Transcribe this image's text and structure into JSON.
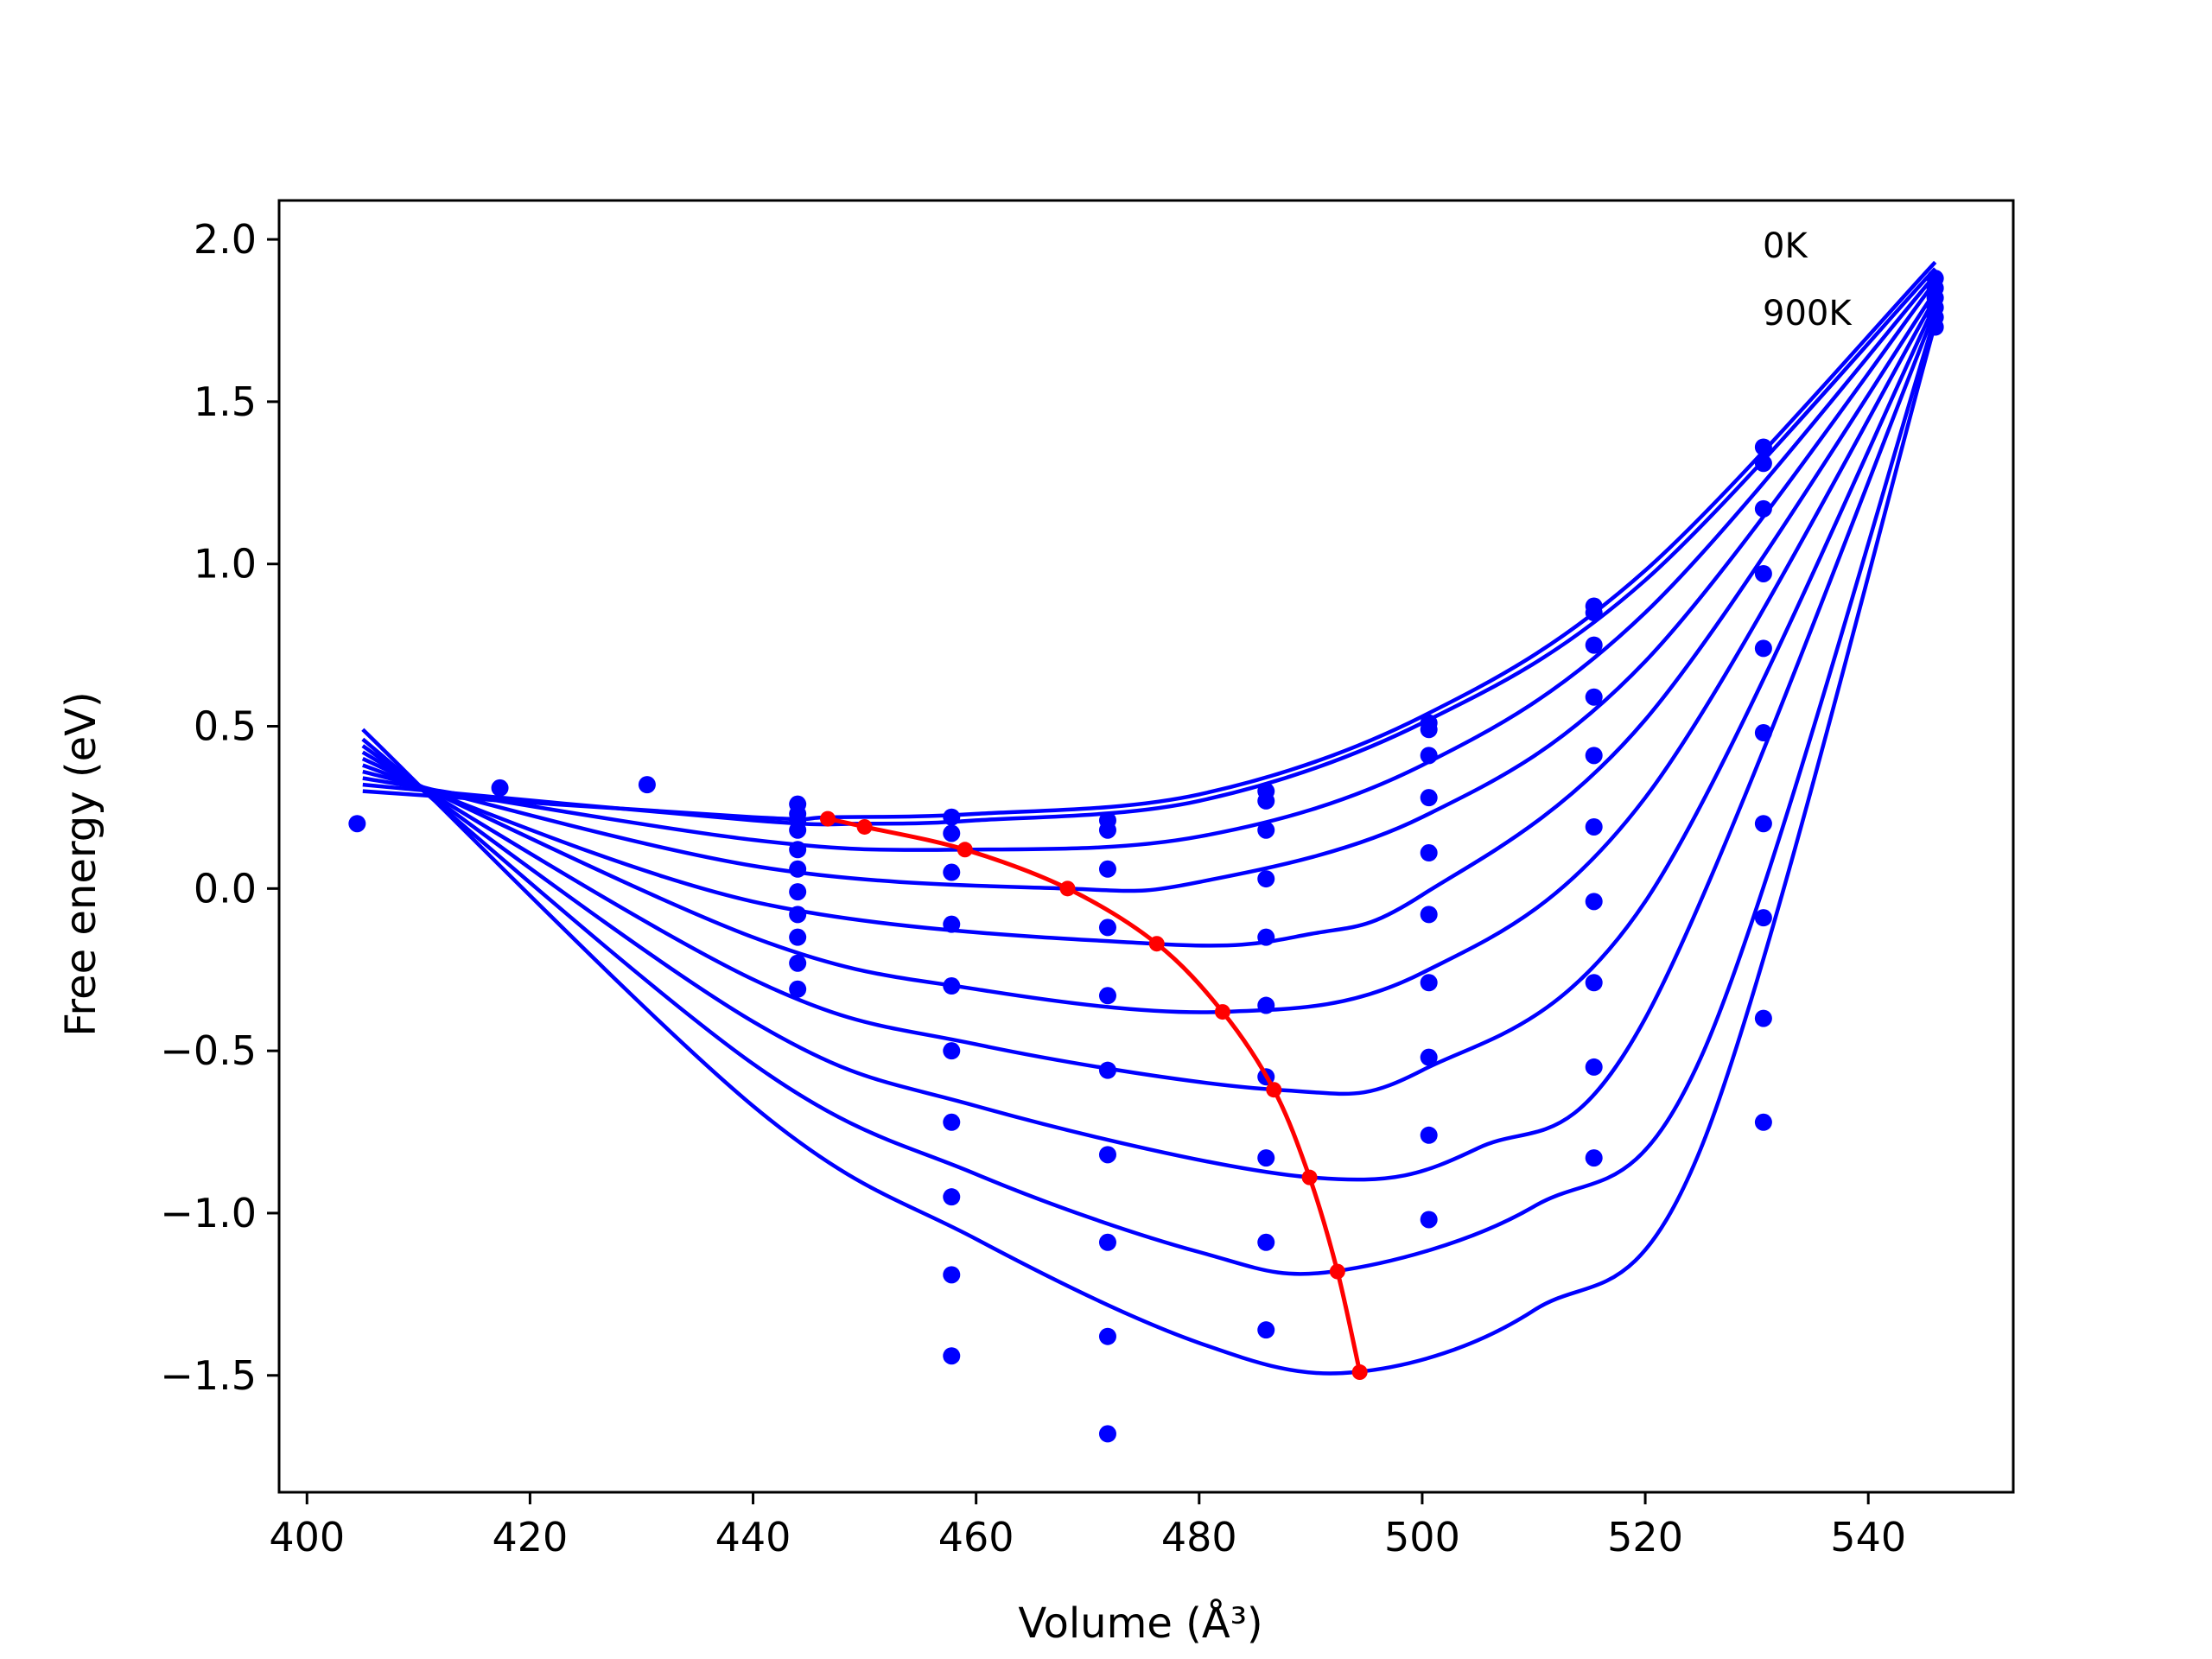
{
  "chart_data": {
    "type": "line",
    "xlabel": "Volume (Å³)",
    "ylabel": "Free energy (eV)",
    "xlim": [
      397.5,
      553
    ],
    "ylim": [
      -1.86,
      2.12
    ],
    "xticks": [
      400,
      420,
      440,
      460,
      480,
      500,
      520,
      540
    ],
    "yticks": [
      2.0,
      1.5,
      1.0,
      0.5,
      0.0,
      -0.5,
      -1.0,
      -1.5
    ],
    "xtick_labels": [
      "400",
      "420",
      "440",
      "460",
      "480",
      "500",
      "520",
      "540"
    ],
    "ytick_labels": [
      "2.0",
      "1.5",
      "1.0",
      "0.5",
      "0.0",
      "−0.5",
      "−1.0",
      "−1.5"
    ],
    "annotations": [
      "0K",
      "900K"
    ],
    "line_color": "#0000ff",
    "minima_color": "#ff0000",
    "fit_curves": [
      {
        "x": [
          405,
          440,
          447,
          460,
          480,
          500,
          520,
          546
        ],
        "y": [
          0.3,
          0.22,
          0.22,
          0.23,
          0.29,
          0.53,
          0.98,
          1.93
        ]
      },
      {
        "x": [
          405,
          440,
          450,
          460,
          480,
          500,
          520,
          546
        ],
        "y": [
          0.32,
          0.21,
          0.2,
          0.21,
          0.27,
          0.51,
          0.95,
          1.91
        ]
      },
      {
        "x": [
          405,
          440,
          459,
          480,
          500,
          520,
          546
        ],
        "y": [
          0.34,
          0.15,
          0.12,
          0.16,
          0.38,
          0.85,
          1.89
        ]
      },
      {
        "x": [
          405,
          440,
          468,
          480,
          500,
          520,
          546
        ],
        "y": [
          0.36,
          0.07,
          0.0,
          0.02,
          0.22,
          0.7,
          1.87
        ]
      },
      {
        "x": [
          405,
          440,
          476,
          490,
          500,
          520,
          546
        ],
        "y": [
          0.38,
          -0.04,
          -0.17,
          -0.14,
          -0.02,
          0.52,
          1.84
        ]
      },
      {
        "x": [
          405,
          440,
          460,
          482,
          500,
          520,
          546
        ],
        "y": [
          0.4,
          -0.15,
          -0.31,
          -0.38,
          -0.26,
          0.28,
          1.82
        ]
      },
      {
        "x": [
          405,
          440,
          460,
          487,
          500,
          520,
          546
        ],
        "y": [
          0.42,
          -0.28,
          -0.48,
          -0.62,
          -0.56,
          -0.04,
          1.8
        ]
      },
      {
        "x": [
          405,
          440,
          460,
          490,
          505,
          520,
          546
        ],
        "y": [
          0.44,
          -0.41,
          -0.67,
          -0.89,
          -0.8,
          -0.4,
          1.78
        ]
      },
      {
        "x": [
          405,
          440,
          460,
          480,
          492,
          510,
          525,
          546
        ],
        "y": [
          0.46,
          -0.54,
          -0.88,
          -1.12,
          -1.18,
          -0.98,
          -0.52,
          1.76
        ]
      },
      {
        "x": [
          405,
          440,
          460,
          480,
          494,
          510,
          525,
          546
        ],
        "y": [
          0.49,
          -0.67,
          -1.08,
          -1.4,
          -1.49,
          -1.3,
          -0.8,
          1.74
        ]
      }
    ],
    "data_points": [
      {
        "x": 404.5,
        "y": 0.2
      },
      {
        "x": 417.3,
        "y": 0.31
      },
      {
        "x": 430.5,
        "y": 0.32
      },
      {
        "x": 444,
        "y": 0.26
      },
      {
        "x": 444,
        "y": 0.23
      },
      {
        "x": 444,
        "y": 0.21
      },
      {
        "x": 444,
        "y": 0.18
      },
      {
        "x": 444,
        "y": 0.12
      },
      {
        "x": 444,
        "y": 0.06
      },
      {
        "x": 444,
        "y": -0.01
      },
      {
        "x": 444,
        "y": -0.08
      },
      {
        "x": 444,
        "y": -0.15
      },
      {
        "x": 444,
        "y": -0.23
      },
      {
        "x": 444,
        "y": -0.31
      },
      {
        "x": 457.8,
        "y": 0.22
      },
      {
        "x": 457.8,
        "y": 0.17
      },
      {
        "x": 457.8,
        "y": 0.05
      },
      {
        "x": 457.8,
        "y": -0.11
      },
      {
        "x": 457.8,
        "y": -0.3
      },
      {
        "x": 457.8,
        "y": -0.5
      },
      {
        "x": 457.8,
        "y": -0.72
      },
      {
        "x": 457.8,
        "y": -0.95
      },
      {
        "x": 457.8,
        "y": -1.19
      },
      {
        "x": 457.8,
        "y": -1.44
      },
      {
        "x": 471.8,
        "y": 0.21
      },
      {
        "x": 471.8,
        "y": 0.18
      },
      {
        "x": 471.8,
        "y": 0.06
      },
      {
        "x": 471.8,
        "y": -0.12
      },
      {
        "x": 471.8,
        "y": -0.33
      },
      {
        "x": 471.8,
        "y": -0.56
      },
      {
        "x": 471.8,
        "y": -0.82
      },
      {
        "x": 471.8,
        "y": -1.09
      },
      {
        "x": 471.8,
        "y": -1.38
      },
      {
        "x": 471.8,
        "y": -1.68
      },
      {
        "x": 486,
        "y": 0.3
      },
      {
        "x": 486,
        "y": 0.27
      },
      {
        "x": 486,
        "y": 0.18
      },
      {
        "x": 486,
        "y": 0.03
      },
      {
        "x": 486,
        "y": -0.15
      },
      {
        "x": 486,
        "y": -0.36
      },
      {
        "x": 486,
        "y": -0.58
      },
      {
        "x": 486,
        "y": -0.83
      },
      {
        "x": 486,
        "y": -1.09
      },
      {
        "x": 486,
        "y": -1.36
      },
      {
        "x": 500.6,
        "y": 0.51
      },
      {
        "x": 500.6,
        "y": 0.49
      },
      {
        "x": 500.6,
        "y": 0.41
      },
      {
        "x": 500.6,
        "y": 0.28
      },
      {
        "x": 500.6,
        "y": 0.11
      },
      {
        "x": 500.6,
        "y": -0.08
      },
      {
        "x": 500.6,
        "y": -0.29
      },
      {
        "x": 500.6,
        "y": -0.52
      },
      {
        "x": 500.6,
        "y": -0.76
      },
      {
        "x": 500.6,
        "y": -1.02
      },
      {
        "x": 515.4,
        "y": 0.87
      },
      {
        "x": 515.4,
        "y": 0.85
      },
      {
        "x": 515.4,
        "y": 0.75
      },
      {
        "x": 515.4,
        "y": 0.59
      },
      {
        "x": 515.4,
        "y": 0.41
      },
      {
        "x": 515.4,
        "y": 0.19
      },
      {
        "x": 515.4,
        "y": -0.04
      },
      {
        "x": 515.4,
        "y": -0.29
      },
      {
        "x": 515.4,
        "y": -0.55
      },
      {
        "x": 515.4,
        "y": -0.83
      },
      {
        "x": 530.6,
        "y": 1.36
      },
      {
        "x": 530.6,
        "y": 1.31
      },
      {
        "x": 530.6,
        "y": 1.17
      },
      {
        "x": 530.6,
        "y": 0.97
      },
      {
        "x": 530.6,
        "y": 0.74
      },
      {
        "x": 530.6,
        "y": 0.48
      },
      {
        "x": 530.6,
        "y": 0.2
      },
      {
        "x": 530.6,
        "y": -0.09
      },
      {
        "x": 530.6,
        "y": -0.4
      },
      {
        "x": 530.6,
        "y": -0.72
      },
      {
        "x": 546,
        "y": 1.88
      },
      {
        "x": 546,
        "y": 1.85
      },
      {
        "x": 546,
        "y": 1.82
      },
      {
        "x": 546,
        "y": 1.79
      },
      {
        "x": 546,
        "y": 1.76
      },
      {
        "x": 546,
        "y": 1.73
      }
    ],
    "minima": {
      "x": [
        446.7,
        450,
        459,
        468.2,
        476.2,
        482.1,
        486.7,
        489.9,
        492.4,
        494.4
      ],
      "y": [
        0.215,
        0.19,
        0.12,
        0.0,
        -0.17,
        -0.38,
        -0.62,
        -0.89,
        -1.18,
        -1.49
      ]
    }
  }
}
